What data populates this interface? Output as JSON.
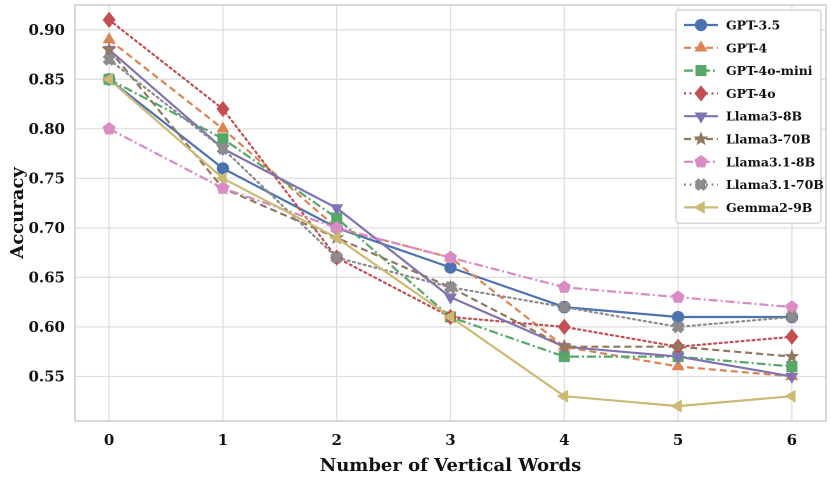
{
  "chart_data": {
    "type": "line",
    "xlabel": "Number of Vertical Words",
    "ylabel": "Accuracy",
    "x": [
      0,
      1,
      2,
      3,
      4,
      5,
      6
    ],
    "xlim": [
      -0.3,
      6.3
    ],
    "ylim": [
      0.505,
      0.925
    ],
    "yticks": [
      0.55,
      0.6,
      0.65,
      0.7,
      0.75,
      0.8,
      0.85,
      0.9
    ],
    "ytick_labels": [
      "0.55",
      "0.60",
      "0.65",
      "0.70",
      "0.75",
      "0.80",
      "0.85",
      "0.90"
    ],
    "xtick_labels": [
      "0",
      "1",
      "2",
      "3",
      "4",
      "5",
      "6"
    ],
    "grid": true,
    "legend_position": "top-right",
    "series": [
      {
        "name": "GPT-3.5",
        "values": [
          0.85,
          0.76,
          0.7,
          0.66,
          0.62,
          0.61,
          0.61
        ],
        "color": "#4C72B0",
        "dash": "solid",
        "marker": "circle"
      },
      {
        "name": "GPT-4",
        "values": [
          0.89,
          0.8,
          0.7,
          0.67,
          0.58,
          0.56,
          0.55
        ],
        "color": "#DD8452",
        "dash": "dashed",
        "marker": "triangle-up"
      },
      {
        "name": "GPT-4o-mini",
        "values": [
          0.85,
          0.79,
          0.71,
          0.61,
          0.57,
          0.57,
          0.56
        ],
        "color": "#55A868",
        "dash": "dashdot",
        "marker": "square"
      },
      {
        "name": "GPT-4o",
        "values": [
          0.91,
          0.82,
          0.67,
          0.61,
          0.6,
          0.58,
          0.59
        ],
        "color": "#C44E52",
        "dash": "dotted",
        "marker": "diamond"
      },
      {
        "name": "Llama3-8B",
        "values": [
          0.88,
          0.78,
          0.72,
          0.63,
          0.58,
          0.57,
          0.55
        ],
        "color": "#8172B3",
        "dash": "solid",
        "marker": "triangle-down"
      },
      {
        "name": "Llama3-70B",
        "values": [
          0.88,
          0.74,
          0.69,
          0.64,
          0.58,
          0.58,
          0.57
        ],
        "color": "#937860",
        "dash": "dashed",
        "marker": "star"
      },
      {
        "name": "Llama3.1-8B",
        "values": [
          0.8,
          0.74,
          0.7,
          0.67,
          0.64,
          0.63,
          0.62
        ],
        "color": "#DA8BC3",
        "dash": "dashdot",
        "marker": "pentagon"
      },
      {
        "name": "Llama3.1-70B",
        "values": [
          0.87,
          0.78,
          0.67,
          0.64,
          0.62,
          0.6,
          0.61
        ],
        "color": "#8C8C8C",
        "dash": "dotted",
        "marker": "x"
      },
      {
        "name": "Gemma2-9B",
        "values": [
          0.85,
          0.75,
          0.69,
          0.61,
          0.53,
          0.52,
          0.53
        ],
        "color": "#CCB974",
        "dash": "solid",
        "marker": "triangle-left"
      }
    ]
  }
}
